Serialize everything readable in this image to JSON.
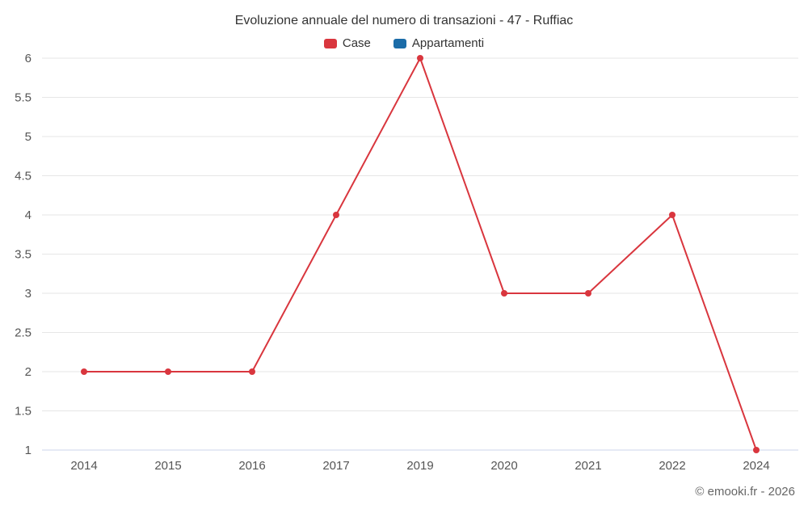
{
  "chart_data": {
    "type": "line",
    "title": "Evoluzione annuale del numero di transazioni - 47 - Ruffiac",
    "categories": [
      "2014",
      "2015",
      "2016",
      "2017",
      "2019",
      "2020",
      "2021",
      "2022",
      "2024"
    ],
    "series": [
      {
        "name": "Case",
        "color": "#d9363e",
        "values": [
          2,
          2,
          2,
          4,
          6,
          3,
          3,
          4,
          1
        ]
      },
      {
        "name": "Appartamenti",
        "color": "#1b6ca8",
        "values": []
      }
    ],
    "xlabel": "",
    "ylabel": "",
    "ylim": [
      1,
      6
    ],
    "ytick_step": 0.5,
    "grid": true,
    "grid_color": "#e6e6e6",
    "axis_line_color": "#ccd6eb",
    "legend_position": "top",
    "attribution": "© emooki.fr - 2026"
  }
}
